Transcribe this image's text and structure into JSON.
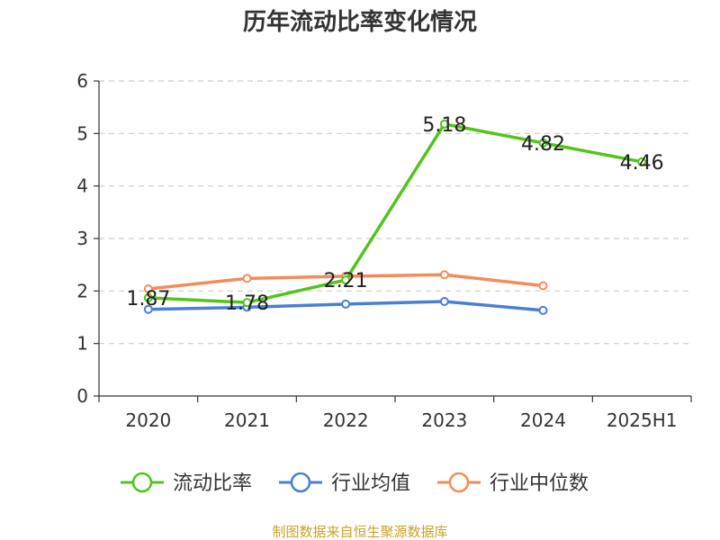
{
  "chart_data": {
    "type": "line",
    "title": "历年流动比率变化情况",
    "categories": [
      "2020",
      "2021",
      "2022",
      "2023",
      "2024",
      "2025H1"
    ],
    "ylim": [
      0,
      6
    ],
    "yticks": [
      0,
      1,
      2,
      3,
      4,
      5,
      6
    ],
    "grid": true,
    "legend_position": "bottom",
    "series": [
      {
        "name": "流动比率",
        "color": "#52c41a",
        "values": [
          1.87,
          1.78,
          2.21,
          5.18,
          4.82,
          4.46
        ],
        "labels": [
          "1.87",
          "1.78",
          "2.21",
          "5.18",
          "4.82",
          "4.46"
        ]
      },
      {
        "name": "行业均值",
        "color": "#4a7fd6",
        "values": [
          1.65,
          1.69,
          1.75,
          1.8,
          1.63,
          null
        ]
      },
      {
        "name": "行业中位数",
        "color": "#f58a5a",
        "values": [
          2.04,
          2.24,
          2.28,
          2.31,
          2.1,
          null
        ]
      }
    ]
  },
  "source_text": "制图数据来自恒生聚源数据库"
}
